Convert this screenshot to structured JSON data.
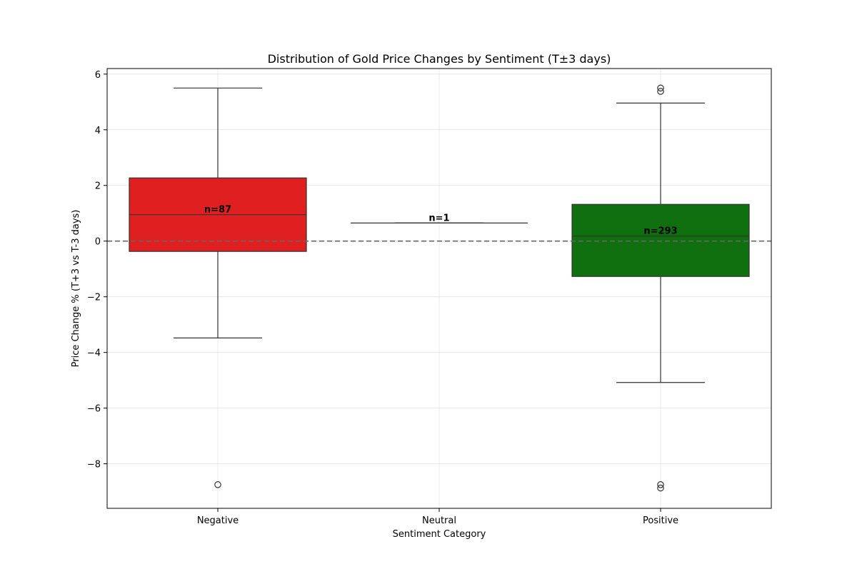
{
  "chart_data": {
    "type": "box",
    "title": "Distribution of Gold Price Changes by Sentiment (T±3 days)",
    "xlabel": "Sentiment Category",
    "ylabel": "Price Change % (T+3 vs T-3 days)",
    "ylim": [
      -9.6,
      6.2
    ],
    "yticks": [
      6,
      4,
      2,
      0,
      -2,
      -4,
      -6,
      -8
    ],
    "ytick_labels": [
      "6",
      "4",
      "2",
      "0",
      "−2",
      "−4",
      "−6",
      "−8"
    ],
    "grid": true,
    "reference_line": {
      "y": 0,
      "style": "dashed"
    },
    "categories": [
      "Negative",
      "Neutral",
      "Positive"
    ],
    "boxes": [
      {
        "category": "Negative",
        "count_label": "n=87",
        "whisker_low": -3.48,
        "q1": -0.37,
        "median": 0.95,
        "q3": 2.27,
        "whisker_high": 5.5,
        "outliers": [
          -8.75
        ],
        "color": "#e02020"
      },
      {
        "category": "Neutral",
        "count_label": "n=1",
        "whisker_low": 0.65,
        "q1": 0.65,
        "median": 0.65,
        "q3": 0.65,
        "whisker_high": 0.65,
        "outliers": [],
        "color": "#999999"
      },
      {
        "category": "Positive",
        "count_label": "n=293",
        "whisker_low": -5.08,
        "q1": -1.27,
        "median": 0.18,
        "q3": 1.32,
        "whisker_high": 4.96,
        "outliers": [
          5.5,
          5.38,
          -8.75,
          -8.87
        ],
        "color": "#107010"
      }
    ]
  }
}
